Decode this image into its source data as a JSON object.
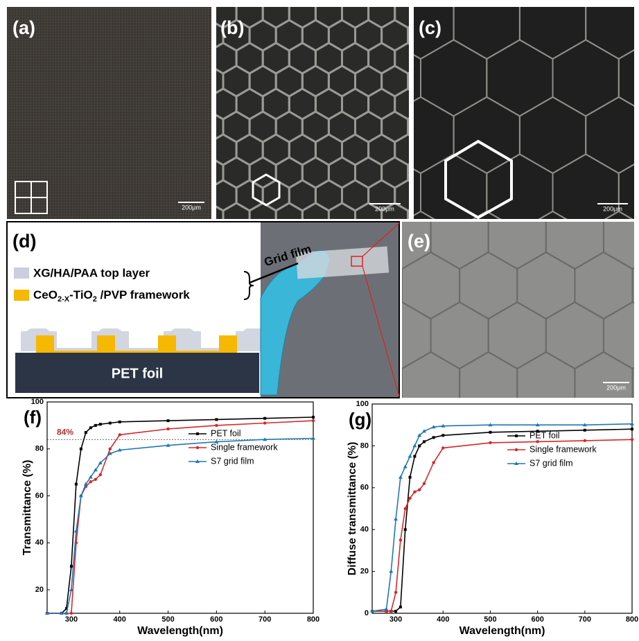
{
  "panels": {
    "a": {
      "label": "(a)",
      "scale": "200μm"
    },
    "b": {
      "label": "(b)",
      "scale": "200μm"
    },
    "c": {
      "label": "(c)",
      "scale": "200μm"
    },
    "d": {
      "label": "(d)",
      "top_layer": "XG/HA/PAA  top layer",
      "framework": {
        "base": "CeO",
        "sub1": "2-X",
        "mid": "-TiO",
        "sub2": "2",
        "rest": " /PVP framework"
      },
      "substrate": "PET foil",
      "photo_label": "Grid film"
    },
    "e": {
      "label": "(e)",
      "scale": "200μm"
    }
  },
  "chart_data": [
    {
      "type": "line",
      "label": "(f)",
      "xlabel": "Wavelength(nm)",
      "ylabel": "Transmittance (%)",
      "x": [
        250,
        280,
        290,
        300,
        310,
        320,
        330,
        340,
        350,
        360,
        380,
        400,
        500,
        600,
        700,
        800
      ],
      "series": [
        {
          "name": "PET foil",
          "color": "#000000",
          "marker": "square",
          "values": [
            10,
            10,
            12,
            30,
            65,
            80,
            87,
            89,
            90,
            90.5,
            91,
            91.5,
            92,
            92.5,
            93,
            93.5
          ]
        },
        {
          "name": "Single framework",
          "color": "#d62728",
          "marker": "circle",
          "values": [
            10,
            10,
            10,
            10,
            40,
            60,
            64,
            66,
            67,
            69,
            80,
            86,
            88.5,
            90,
            91,
            92
          ]
        },
        {
          "name": "S7 grid film",
          "color": "#1f77b4",
          "marker": "triangle",
          "values": [
            10,
            10,
            10,
            20,
            45,
            60,
            65,
            68,
            71,
            74,
            78,
            79.5,
            81.5,
            83,
            84,
            84.5
          ]
        }
      ],
      "xlim": [
        250,
        800
      ],
      "ylim": [
        10,
        100
      ],
      "xticks": [
        300,
        400,
        500,
        600,
        700,
        800
      ],
      "yticks": [
        20,
        40,
        60,
        80,
        100
      ],
      "reference_line": {
        "value": 84,
        "label": "84%",
        "color": "#b03030"
      },
      "legend": "upper right"
    },
    {
      "type": "line",
      "label": "(g)",
      "xlabel": "Wavelength(nm)",
      "ylabel": "Diffuse transmittance (%)",
      "x": [
        250,
        280,
        290,
        300,
        310,
        320,
        330,
        340,
        350,
        360,
        380,
        400,
        500,
        600,
        700,
        800
      ],
      "series": [
        {
          "name": "PET foil",
          "color": "#000000",
          "marker": "square",
          "values": [
            1,
            1,
            1,
            1,
            3,
            40,
            65,
            75,
            80,
            82,
            84,
            85,
            86.5,
            87,
            87.5,
            88
          ]
        },
        {
          "name": "Single framework",
          "color": "#d62728",
          "marker": "circle",
          "values": [
            1,
            1,
            1,
            10,
            35,
            50,
            55,
            58,
            59,
            62,
            72,
            79,
            81.5,
            82,
            82.5,
            83
          ]
        },
        {
          "name": "S7 grid film",
          "color": "#1f77b4",
          "marker": "triangle",
          "values": [
            1,
            2,
            20,
            45,
            65,
            70,
            75,
            80,
            85,
            87,
            89,
            89.5,
            90,
            90,
            90,
            90.5
          ]
        }
      ],
      "xlim": [
        250,
        800
      ],
      "ylim": [
        0,
        100
      ],
      "xticks": [
        300,
        400,
        500,
        600,
        700,
        800
      ],
      "yticks": [
        0,
        20,
        40,
        60,
        80,
        100
      ],
      "legend": "upper right"
    }
  ]
}
